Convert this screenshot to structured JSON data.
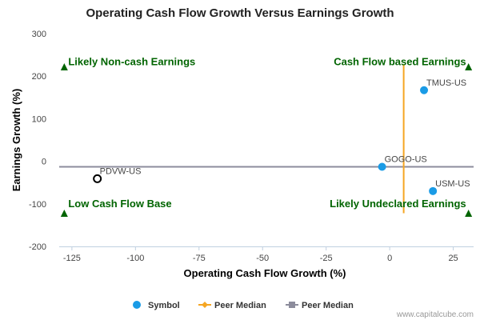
{
  "chart_data": {
    "type": "scatter",
    "title": "Operating Cash Flow Growth Versus Earnings Growth",
    "xlabel": "Operating Cash Flow Growth (%)",
    "ylabel": "Earnings Growth (%)",
    "xlim": [
      -130,
      33
    ],
    "ylim": [
      -200,
      300
    ],
    "xticks": [
      -125,
      -100,
      -75,
      -50,
      -25,
      0,
      25
    ],
    "yticks": [
      -200,
      -100,
      0,
      100,
      200,
      300
    ],
    "grid": false,
    "points": [
      {
        "label": "TMUS-US",
        "x": 13.5,
        "y": 167,
        "style": "filled",
        "color": "#1a9be6"
      },
      {
        "label": "GOGO-US",
        "x": -3,
        "y": -13,
        "style": "filled",
        "color": "#1a9be6"
      },
      {
        "label": "USM-US",
        "x": 17,
        "y": -70,
        "style": "filled",
        "color": "#1a9be6"
      },
      {
        "label": "PDVW-US",
        "x": -115,
        "y": -41,
        "style": "hollow",
        "color": "#000000"
      }
    ],
    "peer_median_x": 5.5,
    "peer_median_y": -13,
    "peer_median_x_color": "#f5a623",
    "peer_median_y_color": "#8c8c9c",
    "quadrant_labels": {
      "top_left": "Likely Non-cash Earnings",
      "top_right": "Cash Flow based Earnings",
      "bottom_left": "Low Cash Flow Base",
      "bottom_right": "Likely Undeclared Earnings"
    },
    "quadrant_color": "#006400",
    "legend_position": "bottom",
    "legend": [
      {
        "name": "Symbol",
        "marker": "circle",
        "color": "#1a9be6"
      },
      {
        "name": "Peer Median",
        "marker": "diamond-line",
        "color": "#f5a623"
      },
      {
        "name": "Peer Median",
        "marker": "square-line",
        "color": "#8c8c9c"
      }
    ]
  },
  "credit": "www.capitalcube.com"
}
